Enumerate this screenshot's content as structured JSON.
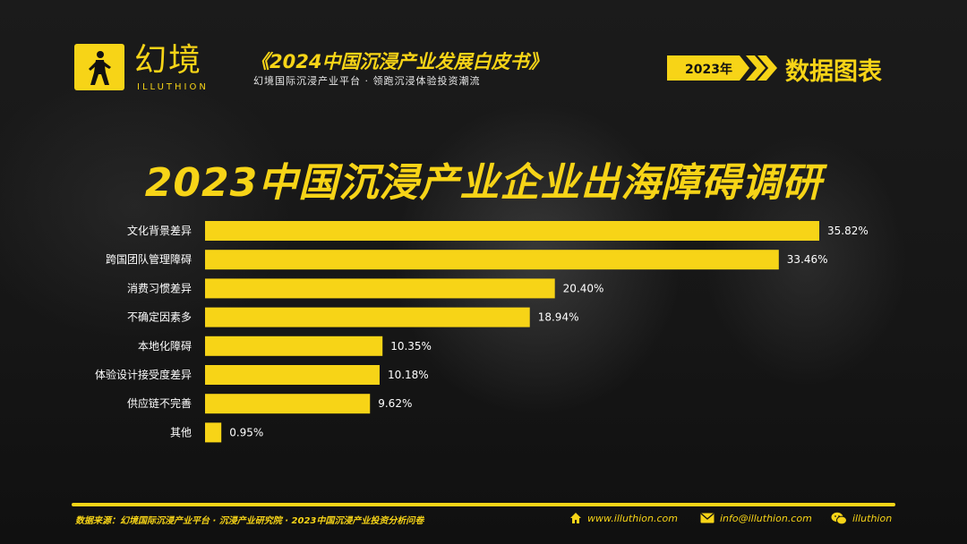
{
  "brand": {
    "name_cn": "幻境",
    "name_en": "ILLUTHION"
  },
  "header": {
    "book_title": "《2024中国沉浸产业发展白皮书》",
    "book_subtitle": "幻境国际沉浸产业平台 · 领跑沉浸体验投资潮流",
    "year_tag": "2023年",
    "section_title": "数据图表"
  },
  "chart_data": {
    "type": "bar",
    "orientation": "horizontal",
    "title": "2023中国沉浸产业企业出海障碍调研",
    "categories": [
      "文化背景差异",
      "跨国团队管理障碍",
      "消费习惯差异",
      "不确定因素多",
      "本地化障碍",
      "体验设计接受度差异",
      "供应链不完善",
      "其他"
    ],
    "values": [
      35.82,
      33.46,
      20.4,
      18.94,
      10.35,
      10.18,
      9.62,
      0.95
    ],
    "value_labels": [
      "35.82%",
      "33.46%",
      "20.40%",
      "18.94%",
      "10.35%",
      "10.18%",
      "9.62%",
      "0.95%"
    ],
    "unit": "%",
    "xlim": [
      0,
      35.82
    ],
    "grid": false,
    "legend": "none",
    "bar_color": "#f7d417"
  },
  "footer": {
    "source": "数据来源：幻境国际沉浸产业平台 · 沉浸产业研究院 · 2023中国沉浸产业投资分析问卷",
    "website": "www.illuthion.com",
    "email": "info@illuthion.com",
    "wechat": "illuthion"
  },
  "icons": [
    "home-icon",
    "mail-icon",
    "wechat-icon"
  ],
  "colors": {
    "accent": "#f7d417",
    "background": "#141414"
  }
}
